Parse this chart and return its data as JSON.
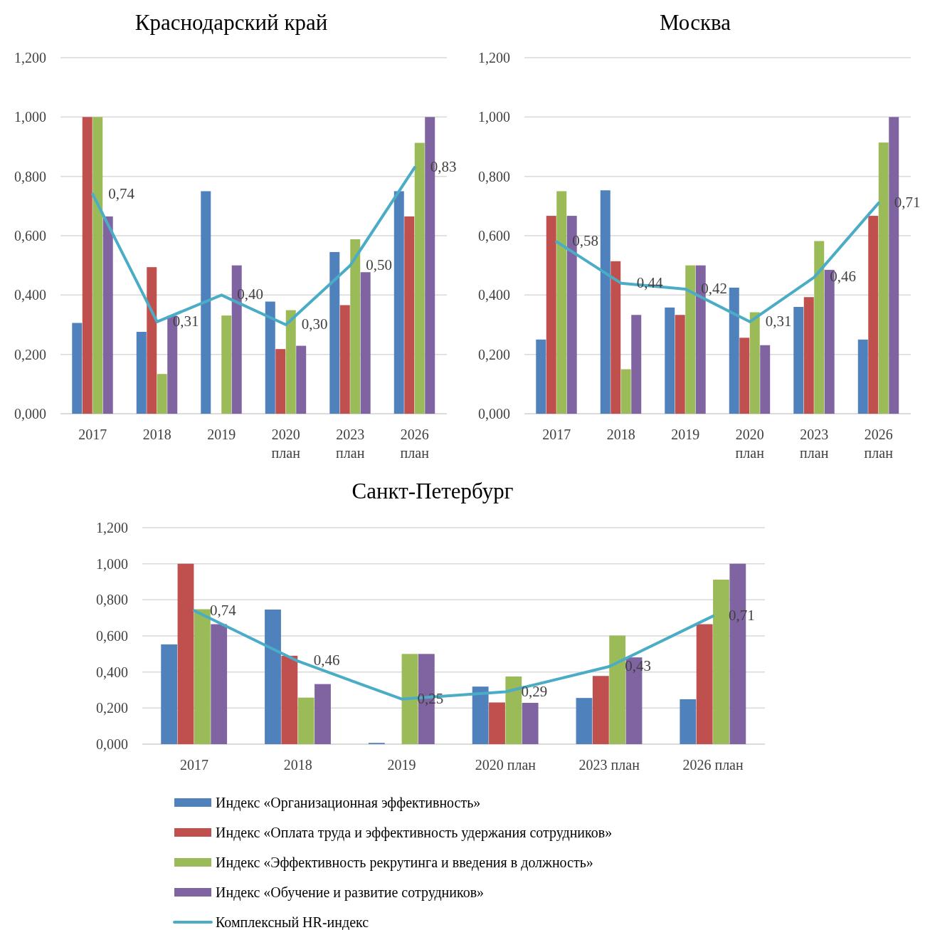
{
  "chart_data": [
    {
      "type": "bar",
      "title": "Краснодарский край",
      "categories": [
        "2017",
        "2018",
        "2019",
        "2020 план",
        "2023 план",
        "2026 план"
      ],
      "ylim": [
        0,
        1.2
      ],
      "yticks": [
        {
          "value": 0,
          "label": "0,000"
        },
        {
          "value": 0.2,
          "label": "0,200"
        },
        {
          "value": 0.4,
          "label": "0,400"
        },
        {
          "value": 0.6,
          "label": "0,600"
        },
        {
          "value": 0.8,
          "label": "0,800"
        },
        {
          "value": 1,
          "label": "1,000"
        },
        {
          "value": 1.2,
          "label": "1,200"
        }
      ],
      "grid": "y",
      "series": [
        {
          "color": "#4f81bd",
          "values": [
            0.306,
            0.276,
            0.75,
            0.378,
            0.545,
            0.75
          ]
        },
        {
          "color": "#c0504d",
          "values": [
            1,
            0.494,
            null,
            0.218,
            0.366,
            0.665
          ]
        },
        {
          "color": "#9bbb59",
          "values": [
            1,
            0.134,
            0.331,
            0.349,
            0.588,
            0.913
          ]
        },
        {
          "color": "#8064a2",
          "values": [
            0.665,
            0.33,
            0.5,
            0.229,
            0.477,
            1
          ]
        },
        {
          "type": "line",
          "color": "#4bacc6",
          "values": [
            0.74,
            0.31,
            0.4,
            0.3,
            0.5,
            0.83
          ],
          "value_labels": [
            "0,74",
            "0,31",
            "0,40",
            "0,30",
            "0,50",
            "0,83"
          ]
        }
      ]
    },
    {
      "type": "bar",
      "title": "Москва",
      "categories": [
        "2017",
        "2018",
        "2019",
        "2020 план",
        "2023 план",
        "2026 план"
      ],
      "ylim": [
        0,
        1.2
      ],
      "yticks": [
        {
          "value": 0,
          "label": "0,000"
        },
        {
          "value": 0.2,
          "label": "0,200"
        },
        {
          "value": 0.4,
          "label": "0,400"
        },
        {
          "value": 0.6,
          "label": "0,600"
        },
        {
          "value": 0.8,
          "label": "0,800"
        },
        {
          "value": 1,
          "label": "1,000"
        },
        {
          "value": 1.2,
          "label": "1,200"
        }
      ],
      "grid": "y",
      "series": [
        {
          "color": "#4f81bd",
          "values": [
            0.25,
            0.753,
            0.358,
            0.425,
            0.36,
            0.25
          ]
        },
        {
          "color": "#c0504d",
          "values": [
            0.667,
            0.514,
            0.333,
            0.256,
            0.393,
            0.667
          ]
        },
        {
          "color": "#9bbb59",
          "values": [
            0.75,
            0.15,
            0.5,
            0.342,
            0.582,
            0.914
          ]
        },
        {
          "color": "#8064a2",
          "values": [
            0.667,
            0.333,
            0.5,
            0.231,
            0.485,
            1
          ]
        },
        {
          "type": "line",
          "color": "#4bacc6",
          "values": [
            0.58,
            0.44,
            0.42,
            0.31,
            0.46,
            0.71
          ],
          "value_labels": [
            "0,58",
            "0,44",
            "0,42",
            "0,31",
            "0,46",
            "0,71"
          ]
        }
      ]
    },
    {
      "type": "bar",
      "title": "Санкт-Петербург",
      "categories": [
        "2017",
        "2018",
        "2019",
        "2020 план",
        "2023 план",
        "2026 план"
      ],
      "ylim": [
        0,
        1.2
      ],
      "yticks": [
        {
          "value": 0,
          "label": "0,000"
        },
        {
          "value": 0.2,
          "label": "0,200"
        },
        {
          "value": 0.4,
          "label": "0,400"
        },
        {
          "value": 0.6,
          "label": "0,600"
        },
        {
          "value": 0.8,
          "label": "0,800"
        },
        {
          "value": 1,
          "label": "1,000"
        },
        {
          "value": 1.2,
          "label": "1,200"
        }
      ],
      "grid": "y",
      "legend": "bottom",
      "series": [
        {
          "name": "Индекс «Организационная эффективность»",
          "color": "#4f81bd",
          "values": [
            0.553,
            0.746,
            0.007,
            0.319,
            0.256,
            0.249
          ]
        },
        {
          "name": "Индекс «Оплата труда и эффективность удержания сотрудников»",
          "color": "#c0504d",
          "values": [
            1,
            0.49,
            null,
            0.231,
            0.378,
            0.665
          ]
        },
        {
          "name": "Индекс «Эффективность рекрутинга и введения в должность»",
          "color": "#9bbb59",
          "values": [
            0.748,
            0.258,
            0.5,
            0.375,
            0.602,
            0.912
          ]
        },
        {
          "name": "Индекс «Обучение и развитие сотрудников»",
          "color": "#8064a2",
          "values": [
            0.665,
            0.333,
            0.5,
            0.229,
            0.481,
            1
          ]
        },
        {
          "name": "Комплексный HR-индекс",
          "type": "line",
          "color": "#4bacc6",
          "values": [
            0.74,
            0.46,
            0.25,
            0.29,
            0.43,
            0.71
          ],
          "value_labels": [
            "0,74",
            "0,46",
            "0,25",
            "0,29",
            "0,43",
            "0,71"
          ]
        }
      ]
    }
  ]
}
